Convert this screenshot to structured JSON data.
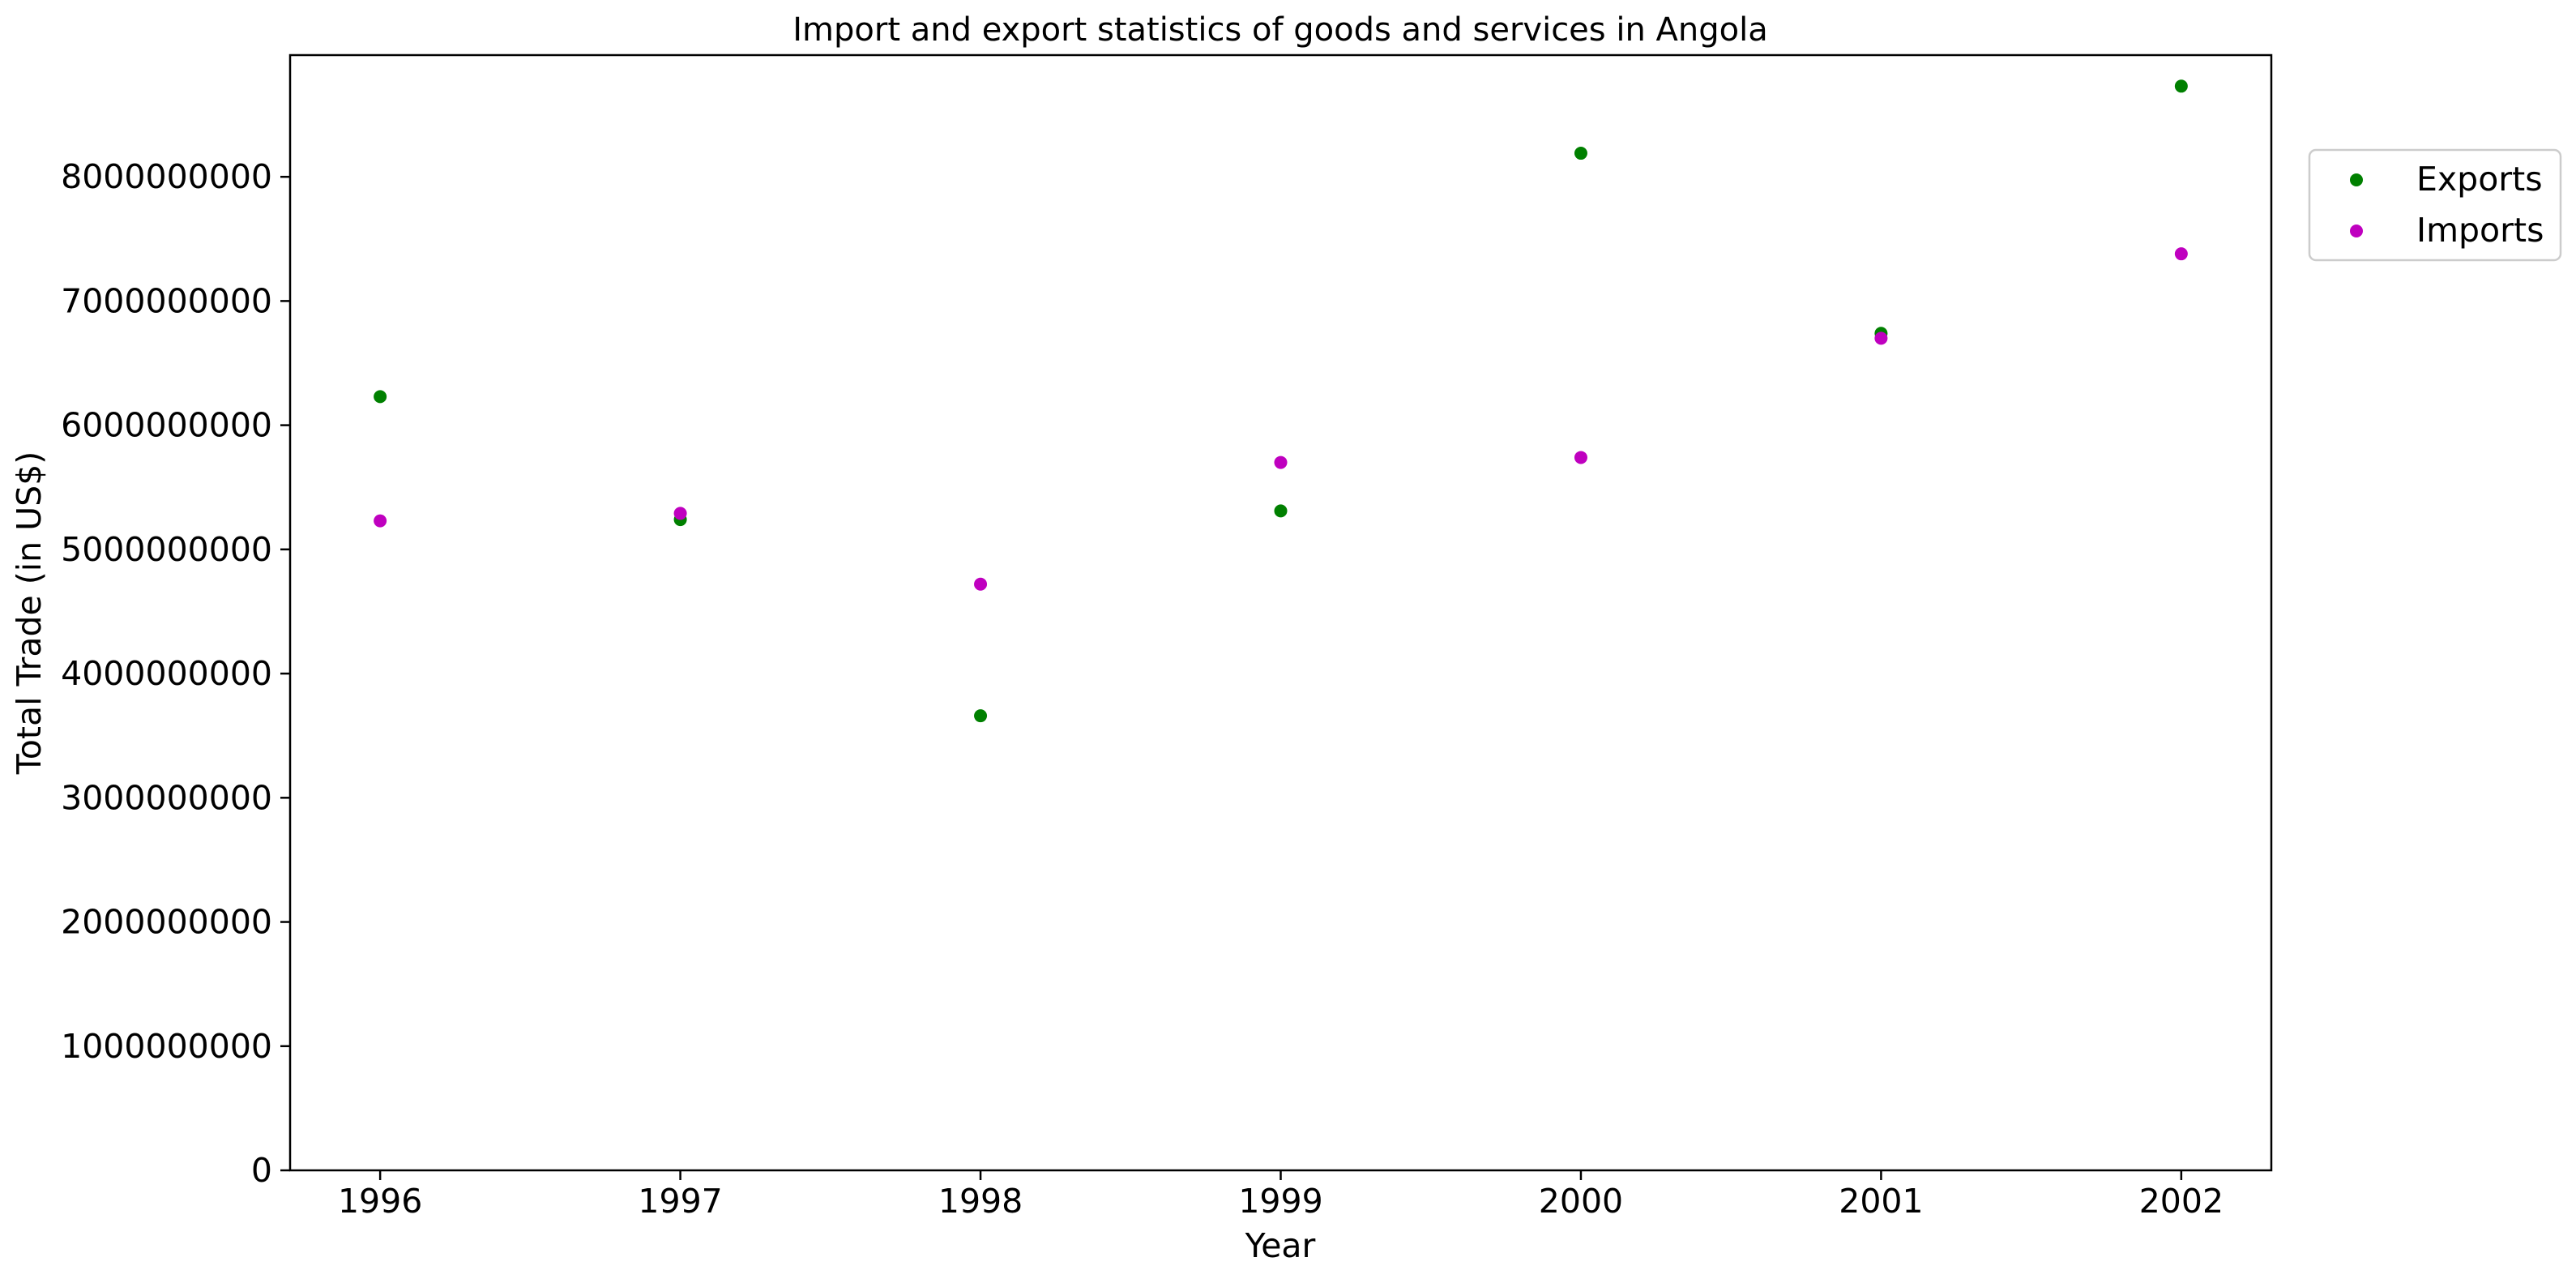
{
  "chart_data": {
    "type": "scatter",
    "title": "Import and export statistics of goods and services in Angola",
    "xlabel": "Year",
    "ylabel": "Total Trade (in US$)",
    "x": [
      1996,
      1997,
      1998,
      1999,
      2000,
      2001,
      2002
    ],
    "x_tick_labels": [
      "1996",
      "1997",
      "1998",
      "1999",
      "2000",
      "2001",
      "2002"
    ],
    "y_ticks": [
      0,
      1000000000,
      2000000000,
      3000000000,
      4000000000,
      5000000000,
      6000000000,
      7000000000,
      8000000000
    ],
    "y_tick_labels": [
      "0",
      "1000000000",
      "2000000000",
      "3000000000",
      "4000000000",
      "5000000000",
      "6000000000",
      "7000000000",
      "8000000000"
    ],
    "xlim": [
      1995.7,
      2002.3
    ],
    "ylim": [
      0,
      8980000000
    ],
    "grid": false,
    "legend_position": "outside-top-right",
    "series": [
      {
        "name": "Exports",
        "color": "#008000",
        "values": [
          6230000000,
          5240000000,
          3660000000,
          5310000000,
          8190000000,
          6740000000,
          8730000000
        ]
      },
      {
        "name": "Imports",
        "color": "#bf00bf",
        "values": [
          5230000000,
          5290000000,
          4720000000,
          5700000000,
          5740000000,
          6700000000,
          7380000000
        ]
      }
    ]
  }
}
